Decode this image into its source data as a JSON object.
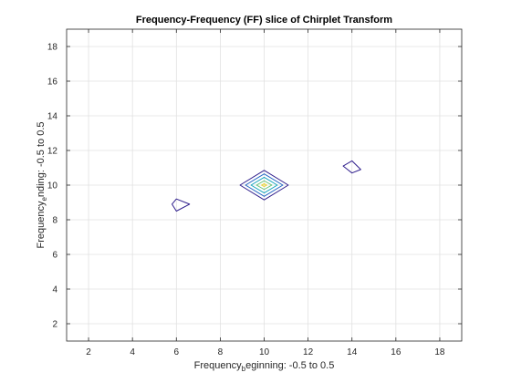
{
  "chart_data": {
    "type": "contour",
    "title": "Frequency-Frequency (FF) slice of Chirplet Transform",
    "xlabel": {
      "main": "Frequency",
      "subscript": "b",
      "rest": "eginning: -0.5 to 0.5"
    },
    "ylabel": {
      "main": "Frequency",
      "subscript": "e",
      "rest": "nding: -0.5 to 0.5"
    },
    "xlim": [
      1,
      19
    ],
    "ylim": [
      1,
      19
    ],
    "xticks": [
      2,
      4,
      6,
      8,
      10,
      12,
      14,
      16,
      18
    ],
    "yticks": [
      2,
      4,
      6,
      8,
      10,
      12,
      14,
      16,
      18
    ],
    "grid": true,
    "box": true,
    "contours": [
      {
        "level": 1,
        "color": "#2f1e8c",
        "points": [
          [
            6,
            9.2
          ],
          [
            6.6,
            8.9
          ],
          [
            6,
            8.5
          ],
          [
            5.8,
            8.9
          ]
        ]
      },
      {
        "level": 1,
        "color": "#2f1e8c",
        "points": [
          [
            14,
            11.4
          ],
          [
            14.4,
            10.9
          ],
          [
            14,
            10.7
          ],
          [
            13.6,
            11.1
          ]
        ]
      },
      {
        "level": 1,
        "color": "#2f1e8c",
        "points": [
          [
            10,
            10.85
          ],
          [
            11.1,
            10
          ],
          [
            10,
            9.15
          ],
          [
            8.9,
            10
          ]
        ]
      },
      {
        "level": 2,
        "color": "#2166c3",
        "points": [
          [
            10,
            10.65
          ],
          [
            10.85,
            10
          ],
          [
            10,
            9.35
          ],
          [
            9.15,
            10
          ]
        ]
      },
      {
        "level": 3,
        "color": "#14a5bd",
        "points": [
          [
            10,
            10.45
          ],
          [
            10.6,
            10
          ],
          [
            10,
            9.55
          ],
          [
            9.4,
            10
          ]
        ]
      },
      {
        "level": 4,
        "color": "#64c276",
        "points": [
          [
            10,
            10.25
          ],
          [
            10.35,
            10
          ],
          [
            10,
            9.75
          ],
          [
            9.65,
            10
          ]
        ]
      },
      {
        "level": 5,
        "color": "#ebd63a",
        "points": [
          [
            10,
            10.08
          ],
          [
            10.12,
            10
          ],
          [
            10,
            9.92
          ],
          [
            9.88,
            10
          ]
        ]
      }
    ]
  }
}
